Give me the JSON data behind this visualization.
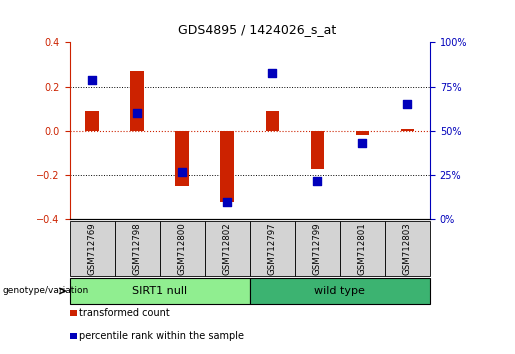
{
  "title": "GDS4895 / 1424026_s_at",
  "samples": [
    "GSM712769",
    "GSM712798",
    "GSM712800",
    "GSM712802",
    "GSM712797",
    "GSM712799",
    "GSM712801",
    "GSM712803"
  ],
  "transformed_count": [
    0.09,
    0.27,
    -0.25,
    -0.32,
    0.09,
    -0.17,
    -0.02,
    0.01
  ],
  "percentile_rank": [
    0.79,
    0.6,
    0.27,
    0.1,
    0.83,
    0.22,
    0.43,
    0.65
  ],
  "groups": [
    {
      "label": "SIRT1 null",
      "n_samples": 4,
      "color": "#90EE90"
    },
    {
      "label": "wild type",
      "n_samples": 4,
      "color": "#3CB371"
    }
  ],
  "ylim": [
    -0.4,
    0.4
  ],
  "y2lim": [
    0,
    1
  ],
  "yticks": [
    -0.4,
    -0.2,
    0.0,
    0.2,
    0.4
  ],
  "y2ticks": [
    0.0,
    0.25,
    0.5,
    0.75,
    1.0
  ],
  "y2tick_labels": [
    "0%",
    "25%",
    "50%",
    "75%",
    "100%"
  ],
  "bar_color": "#CC2200",
  "dot_color": "#0000BB",
  "hline_color": "#CC2200",
  "grid_color": "#000000",
  "legend_label_bar": "transformed count",
  "legend_label_dot": "percentile rank within the sample",
  "bar_width": 0.3,
  "dot_size": 40,
  "title_fontsize": 9,
  "tick_fontsize": 7,
  "label_fontsize": 7.5
}
